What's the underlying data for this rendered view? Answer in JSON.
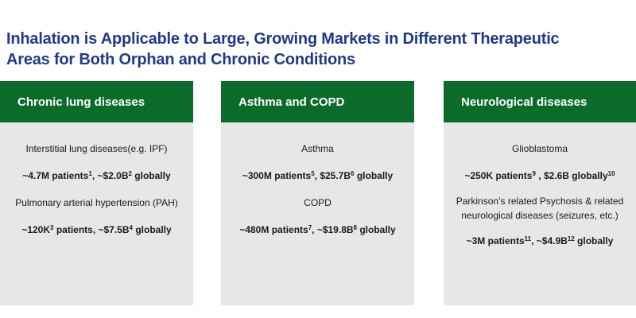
{
  "title": {
    "line1": "Inhalation is Applicable to Large, Growing Markets in Different Therapeutic",
    "line2": "Areas for Both Orphan and Chronic Conditions"
  },
  "cards": [
    {
      "header": "Chronic lung diseases",
      "items": [
        {
          "text": "Interstitial lung diseases(e.g. IPF)"
        },
        {
          "t1": "~4.7M patients",
          "s1": "1",
          "t2": ", ~$2.0B",
          "s2": "2",
          "t3": " globally"
        },
        {
          "text": "Pulmonary arterial hypertension (PAH)"
        },
        {
          "t1": "~120K",
          "s1": "3",
          "t2": "  patients, ~$7.5B",
          "s2": "4",
          "t3": " globally"
        }
      ]
    },
    {
      "header": "Asthma and COPD",
      "items": [
        {
          "text": "Asthma"
        },
        {
          "t1": "~300M patients",
          "s1": "5",
          "t2": ", $25.7B",
          "s2": "6",
          "t3": "  globally"
        },
        {
          "text": "COPD"
        },
        {
          "t1": "~480M patients",
          "s1": "7",
          "t2": ", ~$19.8B",
          "s2": "8",
          "t3": "  globally"
        }
      ]
    },
    {
      "header": "Neurological diseases",
      "items": [
        {
          "text": "Glioblastoma"
        },
        {
          "t1": "~250K patients",
          "s1": "9",
          "t2": " , $2.6B globally",
          "s2": "10",
          "t3": ""
        },
        {
          "text": "Parkinson’s related Psychosis & related neurological diseases (seizures, etc.)"
        },
        {
          "t1": "~3M patients",
          "s1": "11",
          "t2": ", ~$4.9B",
          "s2": "12",
          "t3": " globally"
        }
      ]
    }
  ]
}
